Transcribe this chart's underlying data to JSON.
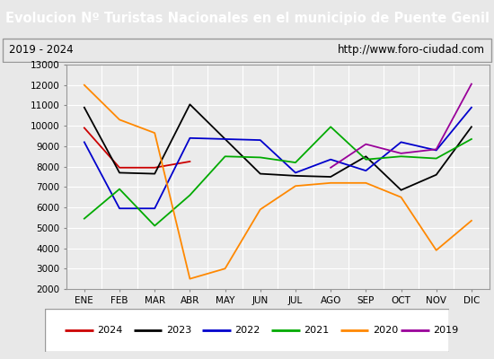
{
  "title": "Evolucion Nº Turistas Nacionales en el municipio de Puente Genil",
  "subtitle_left": "2019 - 2024",
  "subtitle_right": "http://www.foro-ciudad.com",
  "xlabel_months": [
    "ENE",
    "FEB",
    "MAR",
    "ABR",
    "MAY",
    "JUN",
    "JUL",
    "AGO",
    "SEP",
    "OCT",
    "NOV",
    "DIC"
  ],
  "ylim": [
    2000,
    13000
  ],
  "yticks": [
    2000,
    3000,
    4000,
    5000,
    6000,
    7000,
    8000,
    9000,
    10000,
    11000,
    12000,
    13000
  ],
  "series": {
    "2024": {
      "color": "#cc0000",
      "data": [
        9900,
        7950,
        7950,
        8250,
        null,
        null,
        null,
        null,
        null,
        null,
        null,
        null
      ]
    },
    "2023": {
      "color": "#000000",
      "data": [
        10900,
        7700,
        7650,
        11050,
        9350,
        7650,
        7550,
        7500,
        8500,
        6850,
        7600,
        9950
      ]
    },
    "2022": {
      "color": "#0000cc",
      "data": [
        9200,
        5950,
        5950,
        9400,
        9350,
        9300,
        7700,
        8350,
        7800,
        9200,
        8800,
        10900
      ]
    },
    "2021": {
      "color": "#00aa00",
      "data": [
        5450,
        6900,
        5100,
        6600,
        8500,
        8450,
        8200,
        9950,
        8350,
        8500,
        8400,
        9350
      ]
    },
    "2020": {
      "color": "#ff8800",
      "data": [
        12000,
        10300,
        9650,
        2500,
        3000,
        5900,
        7050,
        7200,
        7200,
        6500,
        3900,
        5350
      ]
    },
    "2019": {
      "color": "#990099",
      "data": [
        null,
        null,
        null,
        null,
        null,
        null,
        null,
        7950,
        9100,
        8650,
        8850,
        12050
      ]
    }
  },
  "title_bg": "#4472c4",
  "title_color": "#ffffff",
  "plot_bg": "#ebebeb",
  "grid_color": "#ffffff",
  "subtitle_bg": "#e8e8e8",
  "border_color": "#999999",
  "fig_bg": "#e8e8e8"
}
